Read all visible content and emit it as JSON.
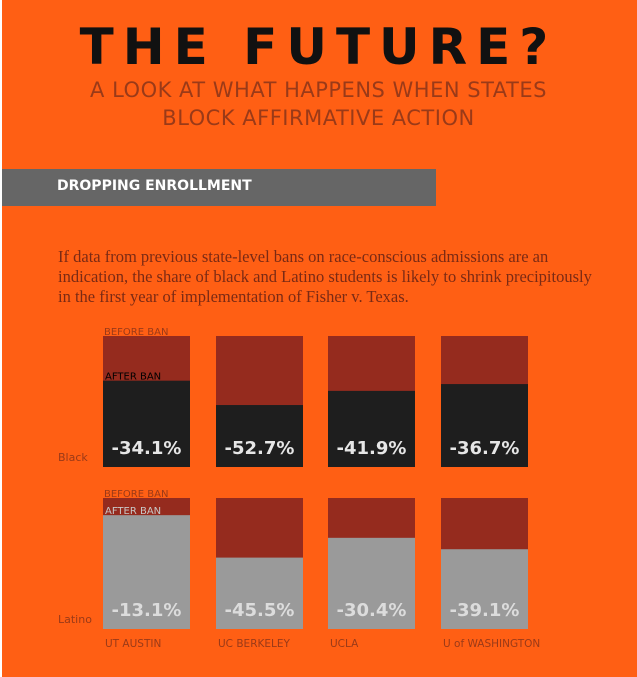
{
  "header": {
    "title": "THE FUTURE?",
    "subtitle_line1": "A LOOK AT WHAT HAPPENS WHEN STATES",
    "subtitle_line2": "BLOCK AFFIRMATIVE ACTION"
  },
  "section": {
    "label": "DROPPING ENROLLMENT"
  },
  "intro": "If data from previous state-level bans on race-conscious admissions are an indication, the share of black and Latino students is likely to shrink precipitously in the first year of implementation of Fisher v. Texas.",
  "chart_data": {
    "type": "bar",
    "title": "Dropping Enrollment",
    "categories": [
      "UT AUSTIN",
      "UC BERKELEY",
      "UCLA",
      "U of WASHINGTON"
    ],
    "legend": {
      "before": "BEFORE BAN",
      "after": "AFTER BAN"
    },
    "series": [
      {
        "name": "Black",
        "values": [
          -34.1,
          -52.7,
          -41.9,
          -36.7
        ],
        "labels": [
          "-34.1%",
          "-52.7%",
          "-41.9%",
          "-36.7%"
        ],
        "color": "#1e1e1e",
        "label_color": "#e6e6e6"
      },
      {
        "name": "Latino",
        "values": [
          -13.1,
          -45.5,
          -30.4,
          -39.1
        ],
        "labels": [
          "-13.1%",
          "-45.5%",
          "-30.4%",
          "-39.1%"
        ],
        "color": "#9a9a9a",
        "label_color": "#dcdcdc"
      }
    ],
    "before_color": "#952b1e",
    "unit": "% change in share after ban"
  }
}
